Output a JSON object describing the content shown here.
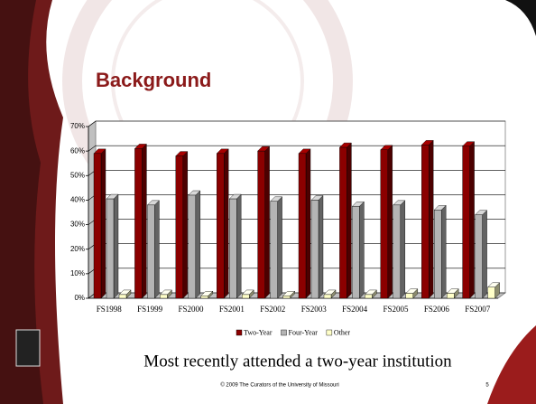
{
  "chart_data": {
    "type": "bar3d",
    "title": "Background",
    "categories": [
      "FS1998",
      "FS1999",
      "FS2000",
      "FS2001",
      "FS2002",
      "FS2003",
      "FS2004",
      "FS2005",
      "FS2006",
      "FS2007"
    ],
    "series": [
      {
        "name": "Two-Year",
        "color": "#8b0000",
        "values": [
          59,
          61,
          58,
          59,
          60,
          59,
          61.5,
          60.5,
          62.5,
          62
        ]
      },
      {
        "name": "Four-Year",
        "color": "#b4b4b4",
        "values": [
          40.5,
          38,
          42,
          40.5,
          39.5,
          40,
          37.5,
          38,
          36,
          34
        ]
      },
      {
        "name": "Other",
        "color": "#ffffc8",
        "values": [
          1.5,
          1.5,
          1,
          1.5,
          1,
          1.5,
          1.5,
          2,
          2,
          4.5
        ]
      }
    ],
    "ylim": [
      0,
      70
    ],
    "yticks": [
      {
        "value": 0,
        "label": "0%"
      },
      {
        "value": 10,
        "label": "10%"
      },
      {
        "value": 20,
        "label": "20%"
      },
      {
        "value": 30,
        "label": "30%"
      },
      {
        "value": 40,
        "label": "40%"
      },
      {
        "value": 50,
        "label": "50%"
      },
      {
        "value": 60,
        "label": "60%"
      },
      {
        "value": 70,
        "label": "70%"
      }
    ],
    "grid": true,
    "legend": "bottom"
  },
  "slide": {
    "caption": "Most recently attended a two-year institution",
    "footer": "© 2009 The Curators of the University of Missouri",
    "page_number": 5
  }
}
